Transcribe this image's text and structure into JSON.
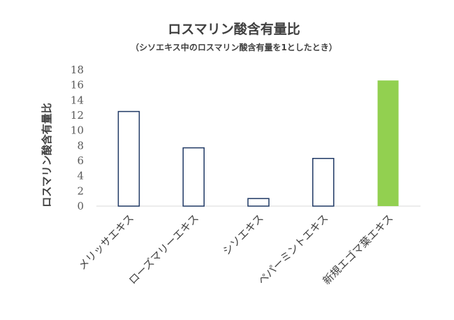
{
  "chart_data": {
    "type": "bar",
    "title": "ロスマリン酸含有量比",
    "subtitle": "（シソエキス中のロスマリン酸含有量を1としたとき）",
    "xlabel": "",
    "ylabel": "ロスマリン酸含有量比",
    "ylim": [
      0,
      18
    ],
    "yticks": [
      0,
      2,
      4,
      6,
      8,
      10,
      12,
      14,
      16,
      18
    ],
    "yticks_labels": [
      "0",
      "2",
      "4",
      "6",
      "8",
      "10",
      "12",
      "14",
      "16",
      "18"
    ],
    "grid": false,
    "legend": "none",
    "categories": [
      "メリッサエキス",
      "ローズマリーエキス",
      "シソエキス",
      "ペパーミントエキス",
      "新規エゴマ葉エキス"
    ],
    "values": [
      12.5,
      7.7,
      1.0,
      6.3,
      16.6
    ],
    "colors": {
      "default_fill": "#ffffff",
      "default_stroke": "#1f3864",
      "highlight_fill": "#92d050",
      "axis": "#d9d9d9"
    },
    "highlight_index": 4
  }
}
